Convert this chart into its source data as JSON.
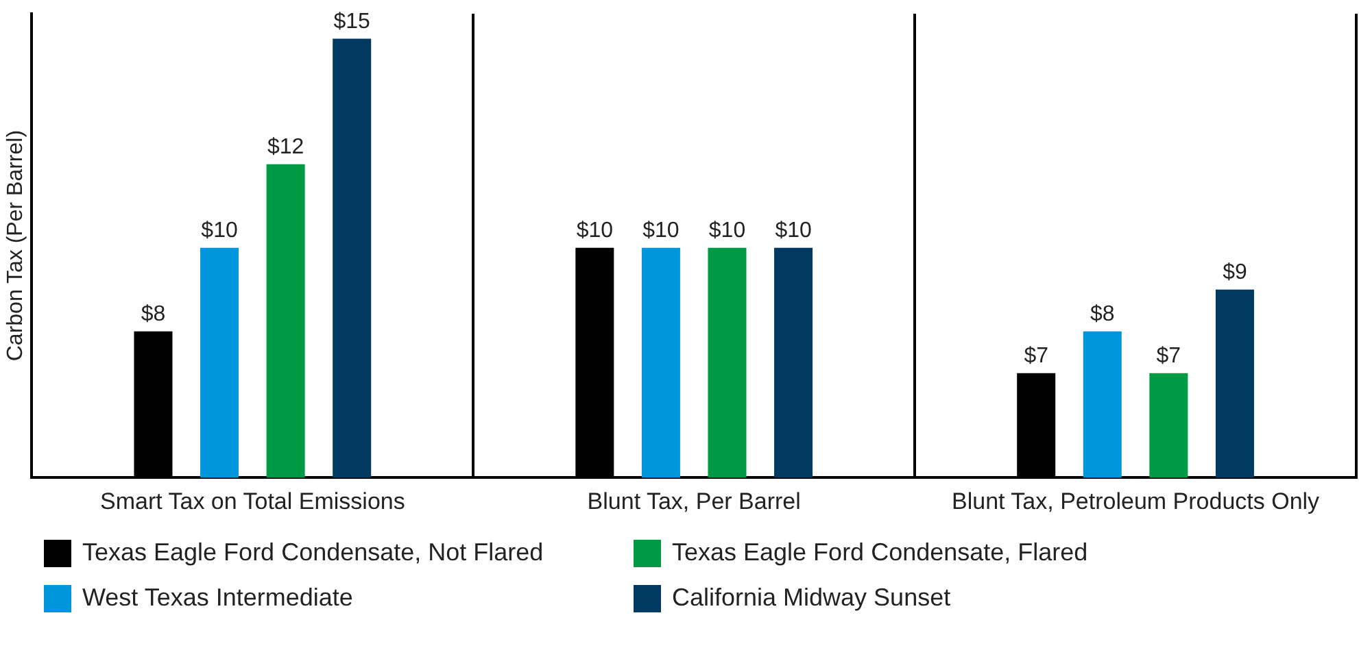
{
  "chart_data": {
    "type": "bar",
    "ylabel": "Carbon Tax (Per Barrel)",
    "categories": [
      "Smart Tax on Total Emissions",
      "Blunt Tax, Per Barrel",
      "Blunt Tax, Petroleum Products Only"
    ],
    "series": [
      {
        "name": "Texas Eagle Ford Condensate, Not Flared",
        "color": "#000000",
        "values": [
          8,
          10,
          7
        ],
        "value_labels": [
          "$8",
          "$10",
          "$7"
        ]
      },
      {
        "name": "West Texas Intermediate",
        "color": "#0096db",
        "values": [
          10,
          10,
          8
        ],
        "value_labels": [
          "$10",
          "$10",
          "$8"
        ]
      },
      {
        "name": "Texas Eagle Ford Condensate, Flared",
        "color": "#009a44",
        "values": [
          12,
          10,
          7
        ],
        "value_labels": [
          "$12",
          "$10",
          "$7"
        ]
      },
      {
        "name": "California Midway Sunset",
        "color": "#003a63",
        "values": [
          15,
          10,
          9
        ],
        "value_labels": [
          "$15",
          "$10",
          "$9"
        ]
      }
    ],
    "ylim": [
      4.5,
      15.6
    ],
    "tick_labels": "x",
    "grid": "x",
    "legend": "bottom"
  }
}
